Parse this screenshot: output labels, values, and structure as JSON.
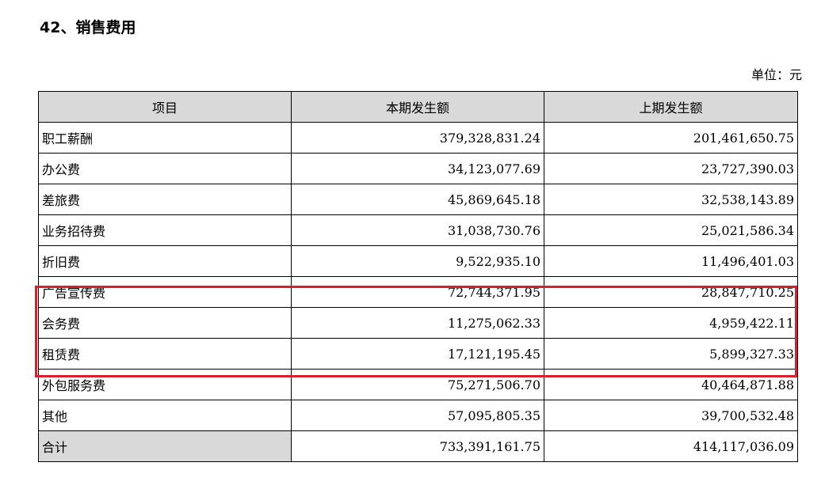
{
  "title": "42、销售费用",
  "unit": "单位：元",
  "table": {
    "headers": [
      "项目",
      "本期发生额",
      "上期发生额"
    ],
    "rows": [
      {
        "item": "职工薪酬",
        "current": "379,328,831.24",
        "previous": "201,461,650.75"
      },
      {
        "item": "办公费",
        "current": "34,123,077.69",
        "previous": "23,727,390.03"
      },
      {
        "item": "差旅费",
        "current": "45,869,645.18",
        "previous": "32,538,143.89"
      },
      {
        "item": "业务招待费",
        "current": "31,038,730.76",
        "previous": "25,021,586.34"
      },
      {
        "item": "折旧费",
        "current": "9,522,935.10",
        "previous": "11,496,401.03"
      },
      {
        "item": "广告宣传费",
        "current": "72,744,371.95",
        "previous": "28,847,710.25"
      },
      {
        "item": "会务费",
        "current": "11,275,062.33",
        "previous": "4,959,422.11"
      },
      {
        "item": "租赁费",
        "current": "17,121,195.45",
        "previous": "5,899,327.33"
      },
      {
        "item": "外包服务费",
        "current": "75,271,506.70",
        "previous": "40,464,871.88"
      },
      {
        "item": "其他",
        "current": "57,095,805.35",
        "previous": "39,700,532.48"
      }
    ],
    "total": {
      "item": "合计",
      "current": "733,391,161.75",
      "previous": "414,117,036.09"
    }
  },
  "colors": {
    "highlight_border": "#d6202b",
    "header_fill": "#d9d9d9"
  }
}
